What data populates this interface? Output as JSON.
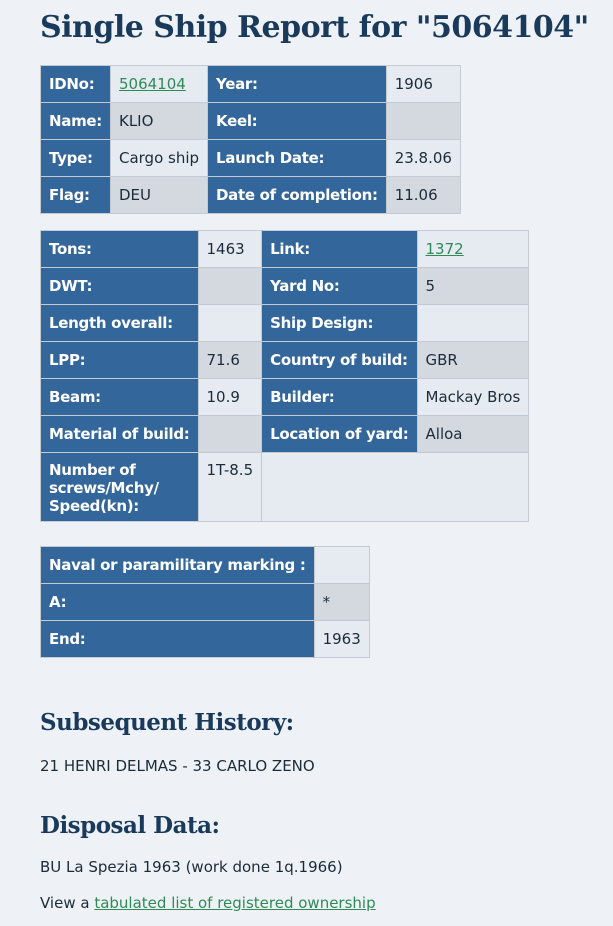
{
  "title": "Single Ship Report for \"5064104\"",
  "table1": {
    "rows": [
      {
        "l1": "IDNo:",
        "v1": "5064104",
        "l2": "Year:",
        "v2": "1906"
      },
      {
        "l1": "Name:",
        "v1": "KLIO",
        "l2": "Keel:",
        "v2": ""
      },
      {
        "l1": "Type:",
        "v1": "Cargo ship",
        "l2": "Launch Date:",
        "v2": "23.8.06"
      },
      {
        "l1": "Flag:",
        "v1": "DEU",
        "l2": "Date of completion:",
        "v2": "11.06"
      }
    ]
  },
  "table2": {
    "rows": [
      {
        "l1": "Tons:",
        "v1": "1463",
        "l2": "Link:",
        "v2": "1372"
      },
      {
        "l1": "DWT:",
        "v1": "",
        "l2": "Yard No:",
        "v2": "5"
      },
      {
        "l1": "Length overall:",
        "v1": "",
        "l2": "Ship Design:",
        "v2": ""
      },
      {
        "l1": "LPP:",
        "v1": "71.6",
        "l2": "Country of build:",
        "v2": "GBR"
      },
      {
        "l1": "Beam:",
        "v1": "10.9",
        "l2": "Builder:",
        "v2": "Mackay Bros"
      },
      {
        "l1": "Material of build:",
        "v1": "",
        "l2": "Location of yard:",
        "v2": "Alloa"
      }
    ],
    "screws_label": "Number of screws/Mchy/ Speed(kn):",
    "screws_value": "1T-8.5"
  },
  "table3": {
    "rows": [
      {
        "l": "Naval or paramilitary marking :",
        "v": ""
      },
      {
        "l": "A:",
        "v": "*"
      },
      {
        "l": "End:",
        "v": "1963"
      }
    ]
  },
  "history": {
    "heading": "Subsequent History:",
    "text": "21 HENRI DELMAS - 33 CARLO ZENO"
  },
  "disposal": {
    "heading": "Disposal Data:",
    "text": "BU La Spezia 1963 (work done 1q.1966)"
  },
  "ownership": {
    "prefix": "View a ",
    "link": "tabulated list of registered ownership"
  }
}
